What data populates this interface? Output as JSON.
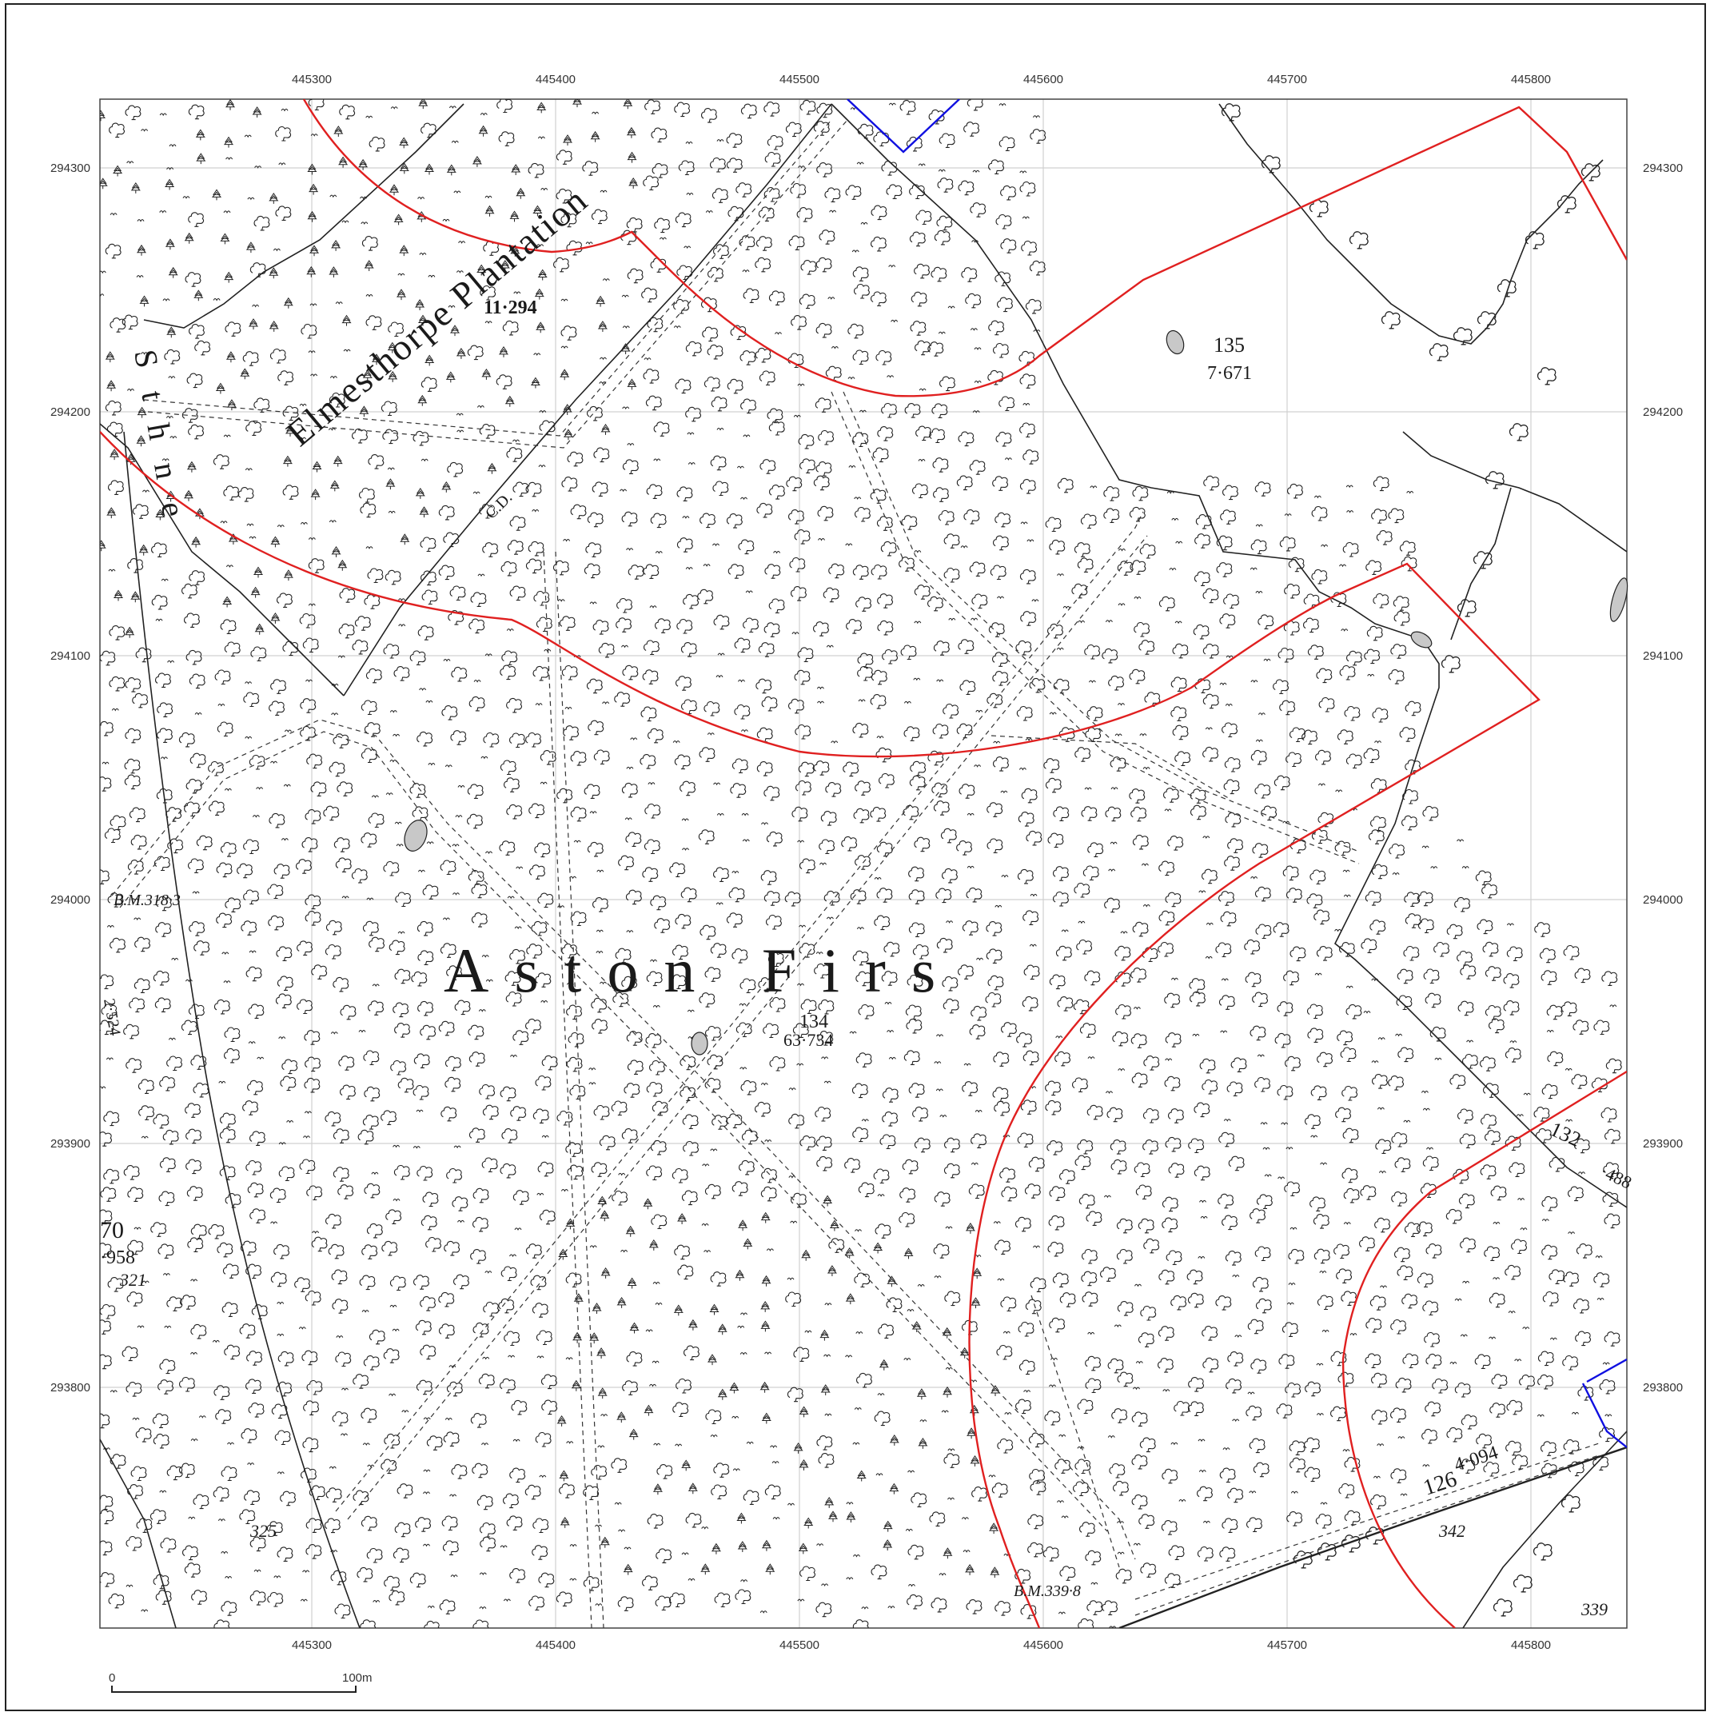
{
  "map": {
    "grid": {
      "eastings": [
        "445300",
        "445400",
        "445500",
        "445600",
        "445700",
        "445800"
      ],
      "northings": [
        "294300",
        "294200",
        "294100",
        "294000",
        "293900",
        "293800"
      ],
      "grid_color": "#d0d0d0"
    },
    "labels": {
      "plantation_name": "Elmesthorpe Plantation",
      "wood_name": "Aston Firs",
      "parcel_134_number": "134",
      "parcel_134_area": "63·734",
      "parcel_135_number": "135",
      "parcel_135_area": "7·671",
      "parcel_plantation_area": "11·294",
      "parcel_132": "132",
      "parcel_132_area": "·488",
      "parcel_126": "126",
      "parcel_126_area": "4·094",
      "parcel_70": "70",
      "parcel_70_area": "·958",
      "bench_mark_west": "B.M.318·3",
      "bench_mark_south": "B.M.339·8",
      "spot_321": "321",
      "spot_325": "325",
      "spot_342": "342",
      "spot_339": "339",
      "spot_2524": "2·524",
      "cd_marker": "C.D.",
      "road_fragment": "S t h n e"
    },
    "scale_bar": {
      "zero_label": "0",
      "end_label": "100m"
    },
    "colors": {
      "site_boundary": "#e02020",
      "adjacent_boundary": "#1010e0",
      "linework": "#222222",
      "pond_fill": "#c8c8c8"
    },
    "icons": [
      "deciduous-tree-icon",
      "conifer-tree-icon"
    ]
  }
}
